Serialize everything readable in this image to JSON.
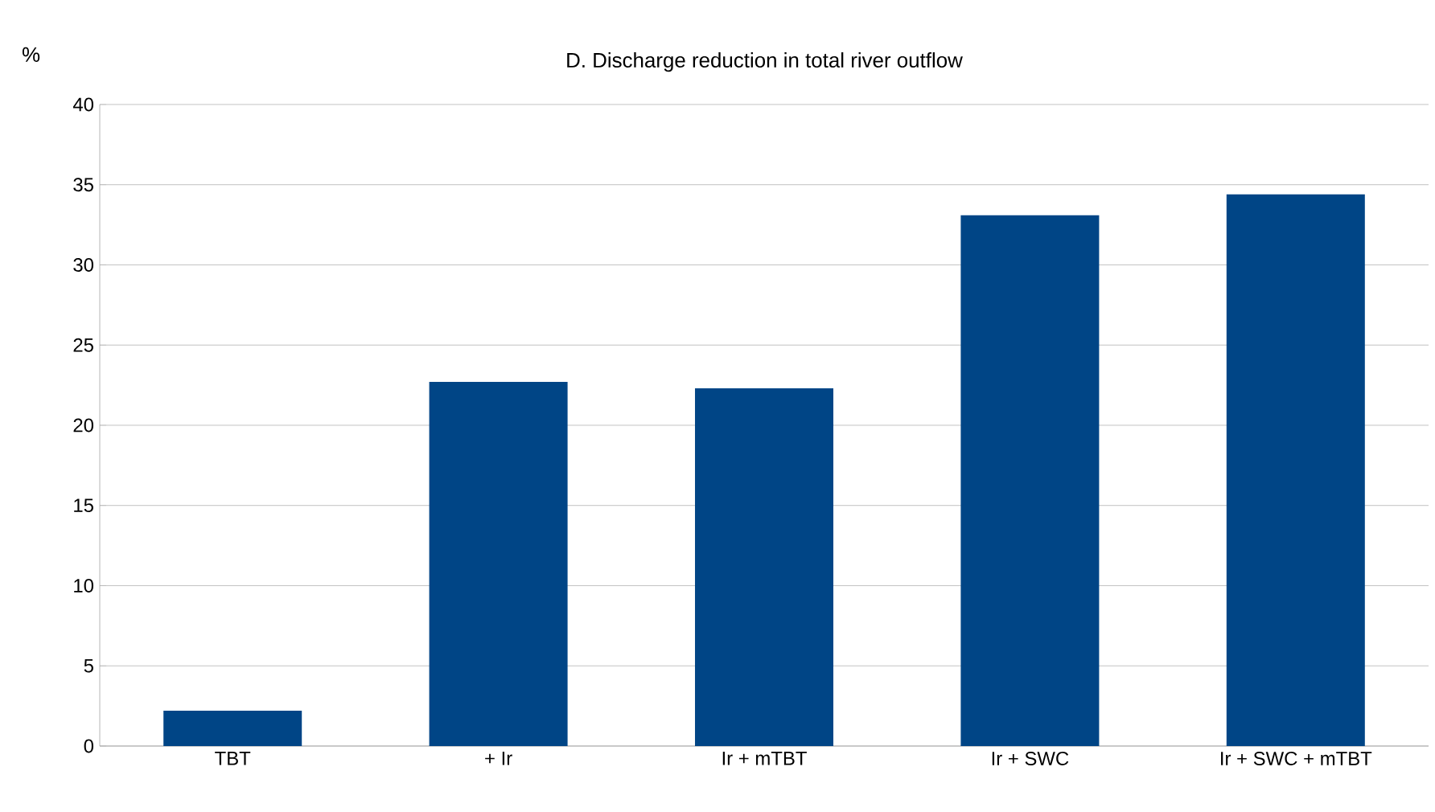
{
  "chart_data": {
    "type": "bar",
    "title": "D. Discharge reduction in total river outflow",
    "ylabel": "%",
    "categories": [
      "TBT",
      "+ Ir",
      "Ir + mTBT",
      "Ir + SWC",
      "Ir + SWC + mTBT"
    ],
    "values": [
      2.2,
      22.7,
      22.3,
      33.1,
      34.4
    ],
    "color": "#004586",
    "ylim": [
      0,
      40
    ],
    "yticks": [
      0,
      5,
      10,
      15,
      20,
      25,
      30,
      35,
      40
    ],
    "grid": "y"
  }
}
